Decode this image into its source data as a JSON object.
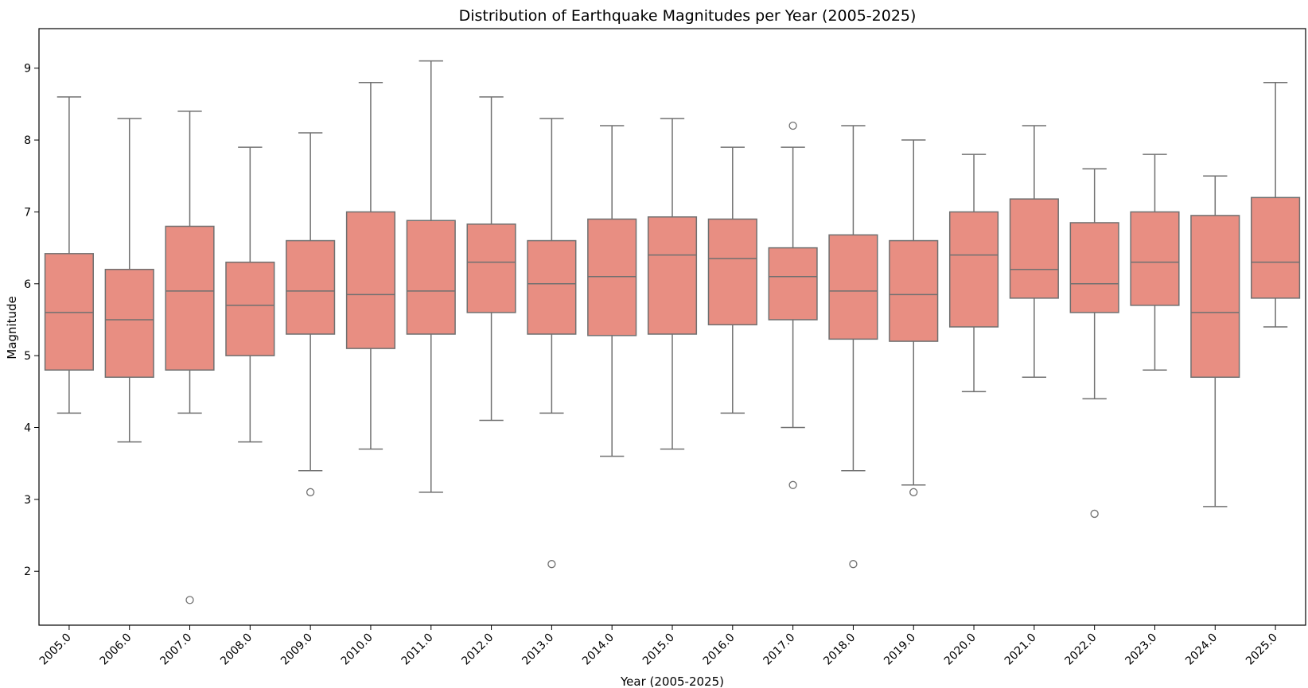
{
  "chart_data": {
    "type": "box",
    "title": "Distribution of Earthquake Magnitudes per Year (2005-2025)",
    "xlabel": "Year (2005-2025)",
    "ylabel": "Magnitude",
    "ylim": [
      1.25,
      9.55
    ],
    "yticks": [
      2,
      3,
      4,
      5,
      6,
      7,
      8,
      9
    ],
    "categories": [
      "2005.0",
      "2006.0",
      "2007.0",
      "2008.0",
      "2009.0",
      "2010.0",
      "2011.0",
      "2012.0",
      "2013.0",
      "2014.0",
      "2015.0",
      "2016.0",
      "2017.0",
      "2018.0",
      "2019.0",
      "2020.0",
      "2021.0",
      "2022.0",
      "2023.0",
      "2024.0",
      "2025.0"
    ],
    "box_color": "#e88e82",
    "line_color": "#707070",
    "grid": false,
    "boxes": [
      {
        "whislo": 4.2,
        "q1": 4.8,
        "med": 5.6,
        "q3": 6.42,
        "whishi": 8.6,
        "fliers": []
      },
      {
        "whislo": 3.8,
        "q1": 4.7,
        "med": 5.5,
        "q3": 6.2,
        "whishi": 8.3,
        "fliers": []
      },
      {
        "whislo": 4.2,
        "q1": 4.8,
        "med": 5.9,
        "q3": 6.8,
        "whishi": 8.4,
        "fliers": [
          1.6
        ]
      },
      {
        "whislo": 3.8,
        "q1": 5.0,
        "med": 5.7,
        "q3": 6.3,
        "whishi": 7.9,
        "fliers": []
      },
      {
        "whislo": 3.4,
        "q1": 5.3,
        "med": 5.9,
        "q3": 6.6,
        "whishi": 8.1,
        "fliers": [
          3.1
        ]
      },
      {
        "whislo": 3.7,
        "q1": 5.1,
        "med": 5.85,
        "q3": 7.0,
        "whishi": 8.8,
        "fliers": []
      },
      {
        "whislo": 3.1,
        "q1": 5.3,
        "med": 5.9,
        "q3": 6.88,
        "whishi": 9.1,
        "fliers": []
      },
      {
        "whislo": 4.1,
        "q1": 5.6,
        "med": 6.3,
        "q3": 6.83,
        "whishi": 8.6,
        "fliers": []
      },
      {
        "whislo": 4.2,
        "q1": 5.3,
        "med": 6.0,
        "q3": 6.6,
        "whishi": 8.3,
        "fliers": [
          2.1
        ]
      },
      {
        "whislo": 3.6,
        "q1": 5.28,
        "med": 6.1,
        "q3": 6.9,
        "whishi": 8.2,
        "fliers": []
      },
      {
        "whislo": 3.7,
        "q1": 5.3,
        "med": 6.4,
        "q3": 6.93,
        "whishi": 8.3,
        "fliers": []
      },
      {
        "whislo": 4.2,
        "q1": 5.43,
        "med": 6.35,
        "q3": 6.9,
        "whishi": 7.9,
        "fliers": []
      },
      {
        "whislo": 4.0,
        "q1": 5.5,
        "med": 6.1,
        "q3": 6.5,
        "whishi": 7.9,
        "fliers": [
          8.2,
          3.2
        ]
      },
      {
        "whislo": 3.4,
        "q1": 5.23,
        "med": 5.9,
        "q3": 6.68,
        "whishi": 8.2,
        "fliers": [
          2.1
        ]
      },
      {
        "whislo": 3.2,
        "q1": 5.2,
        "med": 5.85,
        "q3": 6.6,
        "whishi": 8.0,
        "fliers": [
          3.1
        ]
      },
      {
        "whislo": 4.5,
        "q1": 5.4,
        "med": 6.4,
        "q3": 7.0,
        "whishi": 7.8,
        "fliers": []
      },
      {
        "whislo": 4.7,
        "q1": 5.8,
        "med": 6.2,
        "q3": 7.18,
        "whishi": 8.2,
        "fliers": []
      },
      {
        "whislo": 4.4,
        "q1": 5.6,
        "med": 6.0,
        "q3": 6.85,
        "whishi": 7.6,
        "fliers": [
          2.8
        ]
      },
      {
        "whislo": 4.8,
        "q1": 5.7,
        "med": 6.3,
        "q3": 7.0,
        "whishi": 7.8,
        "fliers": []
      },
      {
        "whislo": 2.9,
        "q1": 4.7,
        "med": 5.6,
        "q3": 6.95,
        "whishi": 7.5,
        "fliers": []
      },
      {
        "whislo": 5.4,
        "q1": 5.8,
        "med": 6.3,
        "q3": 7.2,
        "whishi": 8.8,
        "fliers": []
      }
    ]
  }
}
